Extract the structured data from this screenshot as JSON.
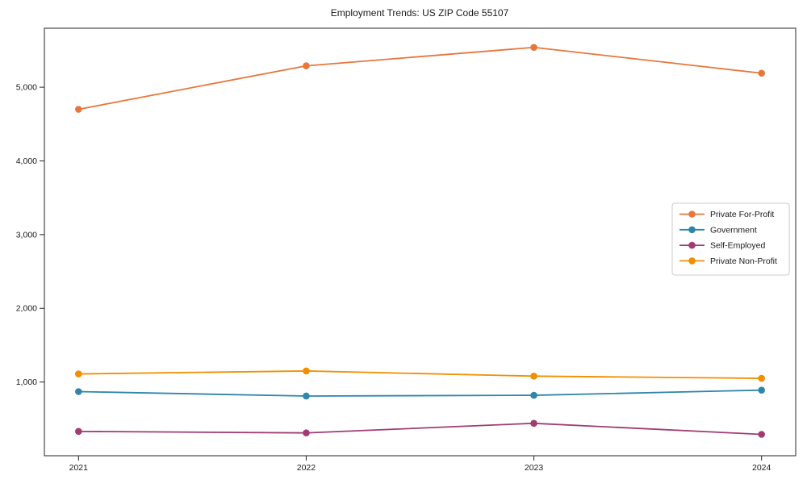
{
  "title": "Employment Trends: US ZIP Code 55107",
  "chart_data": {
    "type": "line",
    "title": "Employment Trends: US ZIP Code 55107",
    "categories": [
      2021,
      2022,
      2023,
      2024
    ],
    "series": [
      {
        "name": "Private For-Profit",
        "color": "#E8763B",
        "values": [
          4700,
          5290,
          5540,
          5190
        ]
      },
      {
        "name": "Government",
        "color": "#2E86AB",
        "values": [
          870,
          810,
          820,
          890
        ]
      },
      {
        "name": "Self-Employed",
        "color": "#A23B72",
        "values": [
          330,
          310,
          440,
          290
        ]
      },
      {
        "name": "Private Non-Profit",
        "color": "#F18F01",
        "values": [
          1110,
          1150,
          1080,
          1050
        ]
      }
    ],
    "xlabel": "",
    "ylabel": "",
    "ylim": [
      0,
      5800
    ],
    "yticks": [
      1000,
      2000,
      3000,
      4000,
      5000
    ],
    "ytick_labels": [
      "1,000",
      "2,000",
      "3,000",
      "4,000",
      "5,000"
    ],
    "xtick_labels": [
      "2021",
      "2022",
      "2023",
      "2024"
    ],
    "grid": false,
    "legend_position": "middle-right",
    "marker": "circle",
    "axis_color": "#262626",
    "legend_border_color": "#cccccc",
    "background_color": "#ffffff"
  }
}
